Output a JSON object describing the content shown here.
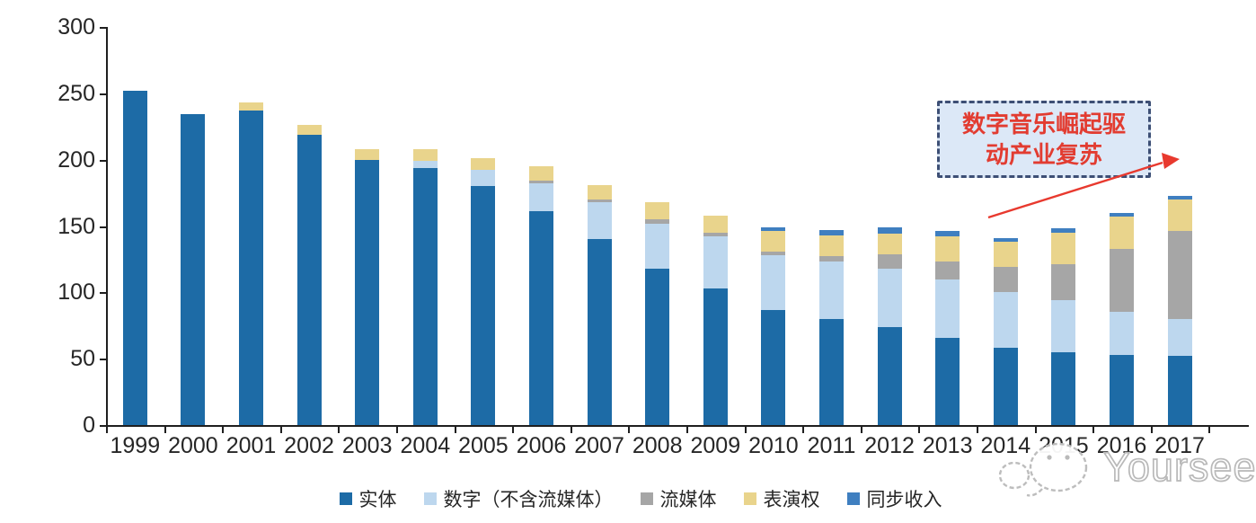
{
  "chart_data": {
    "type": "bar",
    "stacked": true,
    "title": "",
    "xlabel": "",
    "ylabel": "",
    "ylim": [
      0,
      300
    ],
    "yticks": [
      0,
      50,
      100,
      150,
      200,
      250,
      300
    ],
    "grid": false,
    "legend_position": "bottom",
    "categories": [
      "1999",
      "2000",
      "2001",
      "2002",
      "2003",
      "2004",
      "2005",
      "2006",
      "2007",
      "2008",
      "2009",
      "2010",
      "2011",
      "2012",
      "2013",
      "2014",
      "2015",
      "2016",
      "2017"
    ],
    "series": [
      {
        "name": "实体",
        "color": "#1d6ba6",
        "values": [
          252,
          234,
          237,
          219,
          200,
          194,
          180,
          161,
          140,
          118,
          103,
          87,
          80,
          74,
          66,
          58,
          55,
          53,
          52
        ]
      },
      {
        "name": "数字（不含流媒体）",
        "color": "#bdd7ee",
        "values": [
          0,
          0,
          0,
          0,
          0,
          5,
          12,
          21,
          28,
          34,
          39,
          41,
          43,
          44,
          44,
          42,
          39,
          32,
          28
        ]
      },
      {
        "name": "流媒体",
        "color": "#a6a6a6",
        "values": [
          0,
          0,
          0,
          0,
          0,
          0,
          0,
          2,
          2,
          3,
          3,
          3,
          4,
          11,
          13,
          19,
          27,
          48,
          66
        ]
      },
      {
        "name": "表演权",
        "color": "#e9d48c",
        "values": [
          0,
          0,
          6,
          7,
          8,
          9,
          9,
          11,
          11,
          13,
          13,
          15,
          16,
          15,
          19,
          19,
          24,
          24,
          24
        ]
      },
      {
        "name": "同步收入",
        "color": "#3f7fc0",
        "values": [
          0,
          0,
          0,
          0,
          0,
          0,
          0,
          0,
          0,
          0,
          0,
          3,
          4,
          5,
          4,
          3,
          3,
          3,
          3
        ]
      }
    ]
  },
  "annotation": {
    "line1": "数字音乐崛起驱",
    "line2": "动产业复苏",
    "text_color": "#e23c31",
    "box_fill": "#dce8f7",
    "box_border": "#3d4f75",
    "arrow_color": "#e8392e"
  },
  "watermark": {
    "text": "Yourseeker"
  },
  "colors": {
    "axis": "#1f1f1f",
    "labels": "#262626"
  }
}
